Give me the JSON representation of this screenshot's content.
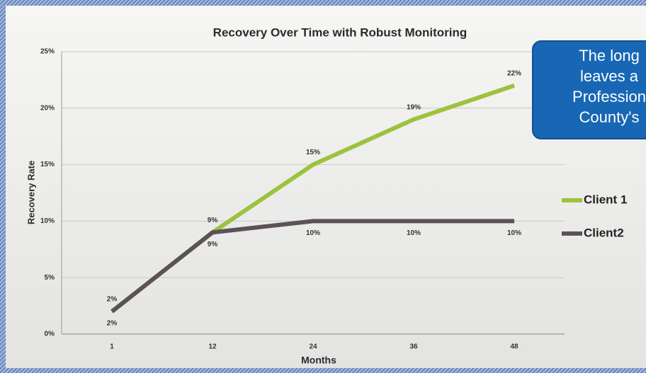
{
  "chart_data": {
    "type": "line",
    "title": "Recovery Over Time with Robust Monitoring",
    "x_label": "Months",
    "y_label": "Recovery Rate",
    "categories": [
      "1",
      "12",
      "24",
      "36",
      "48"
    ],
    "series": [
      {
        "name": "Client 1",
        "color": "#9cc23e",
        "values": [
          2,
          9,
          15,
          19,
          22
        ],
        "value_labels": [
          "2%",
          "9%",
          "15%",
          "19%",
          "22%"
        ]
      },
      {
        "name": "Client2",
        "color": "#5b5257",
        "values": [
          2,
          9,
          10,
          10,
          10
        ],
        "value_labels": [
          "2%",
          "9%",
          "10%",
          "10%",
          "10%"
        ]
      }
    ],
    "ylim": [
      0,
      25
    ],
    "yticks": [
      {
        "value": 0,
        "label": "0%"
      },
      {
        "value": 5,
        "label": "5%"
      },
      {
        "value": 10,
        "label": "10%"
      },
      {
        "value": 15,
        "label": "15%"
      },
      {
        "value": 20,
        "label": "20%"
      },
      {
        "value": 25,
        "label": "25%"
      }
    ],
    "grid": true,
    "legend": "right",
    "annotation": [
      "The long",
      "leaves a",
      "Profession",
      "County's"
    ]
  }
}
